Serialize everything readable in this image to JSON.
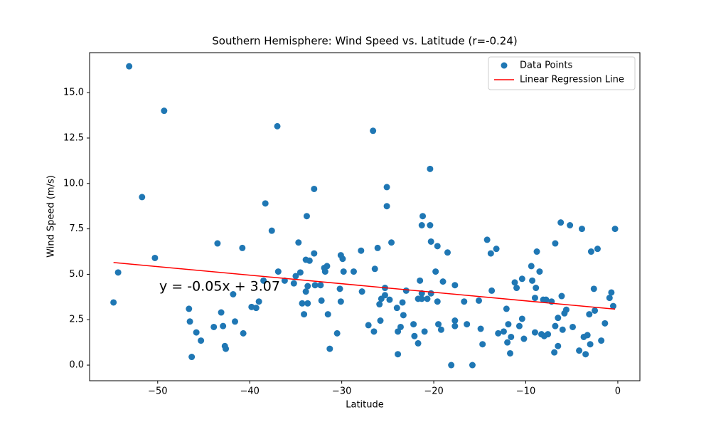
{
  "chart_data": {
    "type": "scatter",
    "title": "Southern Hemisphere: Wind Speed vs. Latitude (r=-0.24)",
    "x_label": "Latitude",
    "y_label": "Wind Speed (m/s)",
    "annotation": "y = -0.05x + 3.07",
    "annotation_color": "#ff0000",
    "xlim": [
      -57.4,
      2.4
    ],
    "ylim": [
      -0.86,
      17.2
    ],
    "xticks": [
      {
        "value": -50,
        "label": "−50"
      },
      {
        "value": -40,
        "label": "−40"
      },
      {
        "value": -30,
        "label": "−30"
      },
      {
        "value": -20,
        "label": "−20"
      },
      {
        "value": -10,
        "label": "−10"
      },
      0
    ],
    "yticks": [
      {
        "value": 0,
        "label": "0.0"
      },
      {
        "value": 2.5,
        "label": "2.5"
      },
      {
        "value": 5,
        "label": "5.0"
      },
      {
        "value": 7.5,
        "label": "7.5"
      },
      {
        "value": 10,
        "label": "10.0"
      },
      {
        "value": 12.5,
        "label": "12.5"
      },
      {
        "value": 15,
        "label": "15.0"
      }
    ],
    "grid": false,
    "legend": "upper right",
    "series": [
      {
        "name": "Data Points",
        "type": "scatter",
        "color": "#1f77b4",
        "x": [
          -54.8,
          -54.3,
          -53.1,
          -51.7,
          -50.3,
          -49.3,
          -46.6,
          -46.5,
          -46.3,
          -45.8,
          -45.3,
          -43.9,
          -43.5,
          -43.1,
          -42.9,
          -42.7,
          -42.6,
          -41.8,
          -41.6,
          -40.8,
          -40.7,
          -39.8,
          -39.3,
          -39.0,
          -38.3,
          -38.5,
          -37.6,
          -37.0,
          -36.9,
          -36.2,
          -35.2,
          -35.0,
          -34.7,
          -34.5,
          -34.3,
          -34.1,
          -33.9,
          -33.8,
          -33.9,
          -33.7,
          -33.5,
          -33.7,
          -33.0,
          -33.0,
          -32.9,
          -32.3,
          -32.2,
          -31.9,
          -31.8,
          -31.6,
          -31.5,
          -31.3,
          -30.5,
          -30.2,
          -30.1,
          -30.1,
          -29.9,
          -29.8,
          -28.7,
          -27.9,
          -27.8,
          -27.1,
          -26.6,
          -26.5,
          -26.4,
          -26.1,
          -25.9,
          -25.8,
          -25.7,
          -25.3,
          -25.3,
          -25.1,
          -25.1,
          -24.8,
          -24.6,
          -24.0,
          -23.9,
          -23.9,
          -23.6,
          -23.4,
          -23.3,
          -23.0,
          -22.2,
          -22.1,
          -21.7,
          -21.7,
          -21.5,
          -21.3,
          -21.3,
          -21.3,
          -21.2,
          -21.0,
          -20.7,
          -20.4,
          -20.4,
          -20.3,
          -20.3,
          -19.8,
          -19.6,
          -19.6,
          -19.5,
          -19.2,
          -19.0,
          -18.5,
          -18.1,
          -17.7,
          -17.7,
          -17.7,
          -16.7,
          -16.4,
          -15.8,
          -15.1,
          -14.9,
          -14.7,
          -14.2,
          -13.8,
          -13.7,
          -13.2,
          -13.0,
          -12.4,
          -12.1,
          -12.0,
          -11.9,
          -11.7,
          -11.6,
          -11.2,
          -11.0,
          -10.7,
          -10.4,
          -10.2,
          -10.4,
          -9.4,
          -9.3,
          -9.0,
          -9.0,
          -8.9,
          -8.8,
          -8.5,
          -8.3,
          -8.1,
          -8.0,
          -7.8,
          -7.6,
          -7.2,
          -6.9,
          -6.8,
          -6.8,
          -6.5,
          -6.5,
          -6.2,
          -6.1,
          -6.0,
          -5.8,
          -5.6,
          -5.2,
          -4.9,
          -4.2,
          -3.9,
          -3.7,
          -3.5,
          -3.3,
          -3.1,
          -3.0,
          -2.9,
          -2.6,
          -2.5,
          -2.2,
          -1.8,
          -1.4,
          -0.9,
          -0.7,
          -0.5,
          -0.3
        ],
        "values": [
          3.45,
          5.1,
          16.45,
          9.25,
          5.9,
          14.0,
          3.1,
          2.4,
          0.45,
          1.8,
          1.35,
          2.1,
          6.7,
          2.9,
          2.15,
          1.05,
          0.9,
          3.9,
          2.4,
          6.45,
          1.75,
          3.2,
          3.15,
          3.5,
          8.9,
          4.65,
          7.4,
          13.15,
          5.15,
          4.65,
          4.5,
          4.9,
          6.75,
          5.1,
          3.4,
          2.8,
          4.05,
          8.2,
          5.8,
          4.35,
          5.75,
          3.4,
          9.7,
          6.15,
          4.4,
          4.4,
          3.55,
          5.35,
          5.15,
          5.45,
          2.8,
          0.9,
          1.75,
          4.2,
          6.05,
          3.5,
          5.85,
          5.15,
          5.15,
          6.3,
          4.05,
          2.2,
          12.9,
          1.85,
          5.3,
          6.45,
          3.35,
          2.45,
          3.65,
          4.25,
          3.85,
          9.8,
          8.75,
          3.6,
          6.75,
          3.15,
          1.85,
          0.6,
          2.1,
          3.45,
          2.75,
          4.1,
          2.25,
          1.6,
          1.2,
          3.65,
          4.65,
          7.7,
          3.95,
          3.65,
          8.2,
          1.85,
          3.65,
          10.8,
          7.7,
          6.8,
          3.95,
          5.15,
          3.5,
          6.55,
          2.25,
          1.95,
          4.6,
          6.2,
          0.0,
          4.4,
          2.45,
          2.15,
          3.5,
          2.25,
          0.0,
          3.55,
          2.0,
          1.15,
          6.9,
          6.15,
          4.1,
          6.4,
          1.75,
          1.85,
          3.1,
          1.25,
          2.25,
          0.65,
          1.55,
          4.55,
          4.25,
          2.15,
          2.55,
          1.45,
          4.75,
          5.45,
          4.65,
          3.7,
          1.8,
          4.25,
          6.25,
          5.15,
          1.7,
          3.6,
          1.6,
          3.6,
          1.7,
          3.5,
          0.7,
          6.7,
          2.15,
          1.05,
          2.6,
          7.85,
          3.8,
          1.95,
          2.85,
          3.05,
          7.7,
          2.1,
          0.8,
          7.5,
          1.55,
          0.6,
          1.65,
          2.8,
          1.15,
          6.25,
          4.2,
          3.0,
          6.4,
          1.35,
          2.3,
          3.7,
          4.0,
          3.25,
          7.5
        ]
      },
      {
        "name": "Linear Regression Line",
        "type": "line",
        "color": "#ff0000",
        "x": [
          -54.8,
          -0.3
        ],
        "values": [
          5.65,
          3.08
        ]
      }
    ]
  }
}
